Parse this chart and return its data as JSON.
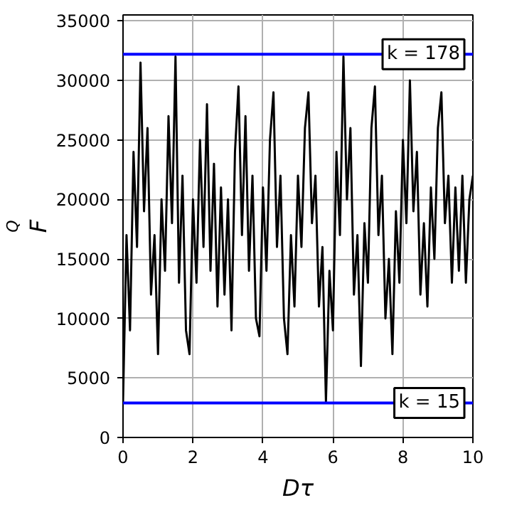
{
  "chart_data": {
    "type": "line",
    "xlabel": "Dτ",
    "ylabel": "F$_{Q}$",
    "x": [
      0.0,
      0.1,
      0.2,
      0.3,
      0.4,
      0.5,
      0.6,
      0.7,
      0.8,
      0.9,
      1.0,
      1.1,
      1.2,
      1.3,
      1.4,
      1.5,
      1.6,
      1.7,
      1.8,
      1.9,
      2.0,
      2.1,
      2.2,
      2.3,
      2.4,
      2.5,
      2.6,
      2.7,
      2.8,
      2.9,
      3.0,
      3.1,
      3.2,
      3.3,
      3.4,
      3.5,
      3.6,
      3.7,
      3.8,
      3.9,
      4.0,
      4.1,
      4.2,
      4.3,
      4.4,
      4.5,
      4.6,
      4.7,
      4.8,
      4.9,
      5.0,
      5.1,
      5.2,
      5.3,
      5.4,
      5.5,
      5.6,
      5.7,
      5.8,
      5.9,
      6.0,
      6.1,
      6.2,
      6.3,
      6.4,
      6.5,
      6.6,
      6.7,
      6.8,
      6.9,
      7.0,
      7.1,
      7.2,
      7.3,
      7.4,
      7.5,
      7.6,
      7.7,
      7.8,
      7.9,
      8.0,
      8.1,
      8.2,
      8.3,
      8.4,
      8.5,
      8.6,
      8.7,
      8.8,
      8.9,
      9.0,
      9.1,
      9.2,
      9.3,
      9.4,
      9.5,
      9.6,
      9.7,
      9.8,
      9.9,
      10.0
    ],
    "series": [
      {
        "color": "#000000",
        "values": [
          3000,
          17000,
          9000,
          24000,
          16000,
          31500,
          19000,
          26000,
          12000,
          17000,
          7000,
          20000,
          14000,
          27000,
          18000,
          32000,
          13000,
          22000,
          9000,
          7000,
          20000,
          13000,
          25000,
          16000,
          28000,
          14000,
          23000,
          11000,
          21000,
          12000,
          20000,
          9000,
          24000,
          29500,
          17000,
          27000,
          14000,
          22000,
          10000,
          8500,
          21000,
          14000,
          25000,
          29000,
          16000,
          22000,
          10000,
          7000,
          17000,
          11000,
          22000,
          16000,
          26000,
          29000,
          18000,
          22000,
          11000,
          16000,
          3000,
          14000,
          9000,
          24000,
          17000,
          32000,
          20000,
          26000,
          12000,
          17000,
          6000,
          18000,
          13000,
          26000,
          29500,
          17000,
          22000,
          10000,
          15000,
          7000,
          19000,
          13000,
          25000,
          18000,
          30000,
          19000,
          24000,
          12000,
          18000,
          11000,
          21000,
          15000,
          26000,
          29000,
          18000,
          22000,
          13000,
          21000,
          14000,
          22000,
          13000,
          20000,
          22000
        ]
      }
    ],
    "xlim": [
      0,
      10
    ],
    "ylim": [
      0,
      35500
    ],
    "xticks": [
      0,
      2,
      4,
      6,
      8,
      10
    ],
    "yticks": [
      0,
      5000,
      10000,
      15000,
      20000,
      25000,
      30000,
      35000
    ],
    "ref_lines": [
      {
        "axis": "y",
        "value": 32200,
        "color": "#0000ff"
      },
      {
        "axis": "y",
        "value": 2900,
        "color": "#0000ff"
      }
    ],
    "annotations": [
      {
        "text": "k = 178",
        "x": 10,
        "y": 32200
      },
      {
        "text": "k = 15",
        "x": 10,
        "y": 2900
      }
    ],
    "grid": true,
    "marker": "none",
    "line_style": "solid"
  }
}
